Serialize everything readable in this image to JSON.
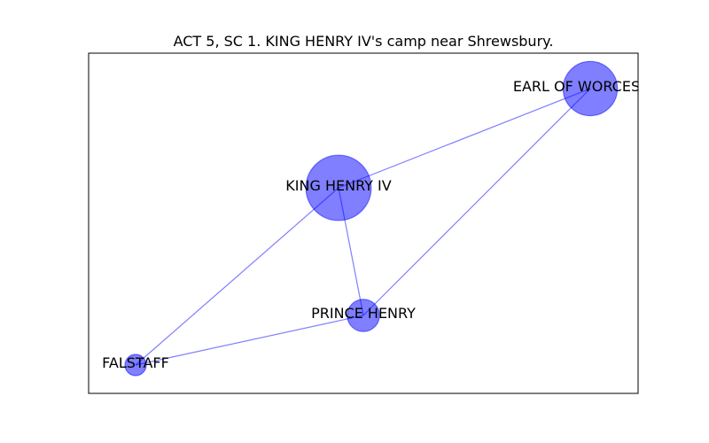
{
  "title": "ACT 5, SC 1. KING HENRY IV's camp near Shrewsbury.",
  "colors": {
    "node_fill": "#0000ff",
    "node_fill_opacity": 0.5,
    "edge": "#0000ff",
    "edge_opacity": 0.5,
    "frame": "#000000"
  },
  "nodes": [
    {
      "id": "king",
      "label": "KING HENRY IV",
      "weight": 5
    },
    {
      "id": "worcester",
      "label": "EARL OF WORCESTER",
      "weight": 4
    },
    {
      "id": "prince",
      "label": "PRINCE HENRY",
      "weight": 2
    },
    {
      "id": "falstaff",
      "label": "FALSTAFF",
      "weight": 1
    }
  ],
  "edges": [
    {
      "source": "worcester",
      "target": "king"
    },
    {
      "source": "worcester",
      "target": "prince"
    },
    {
      "source": "king",
      "target": "prince"
    },
    {
      "source": "king",
      "target": "falstaff"
    },
    {
      "source": "prince",
      "target": "falstaff"
    }
  ]
}
